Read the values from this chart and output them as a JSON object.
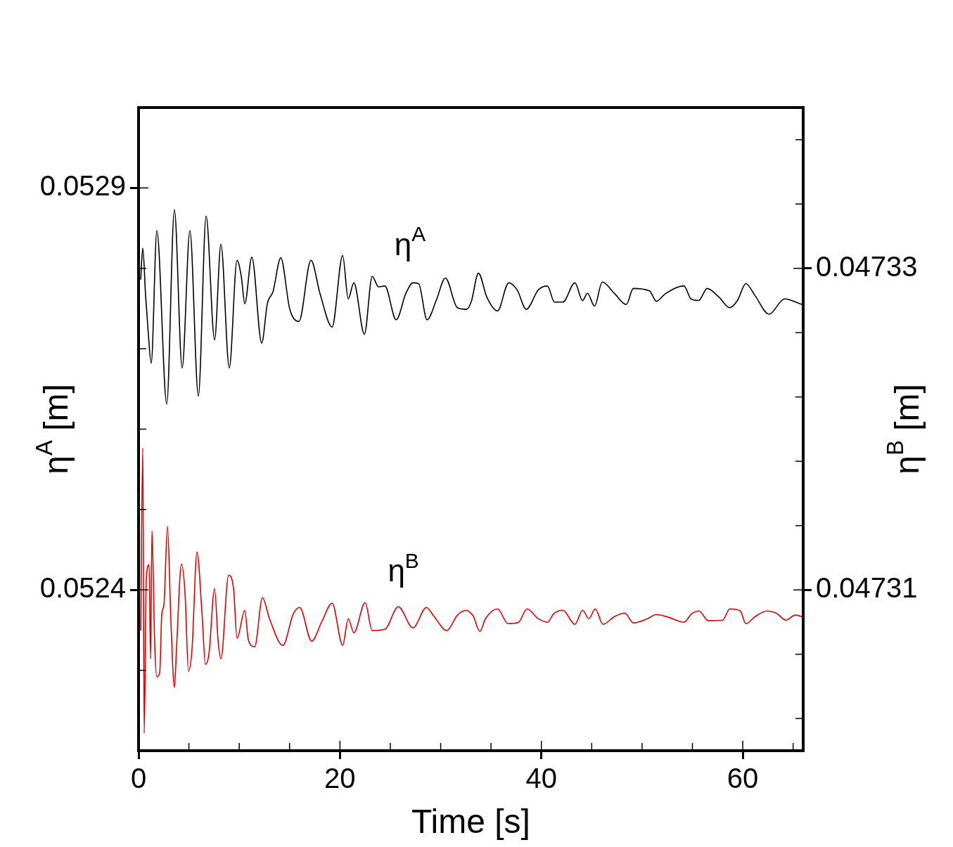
{
  "chart_data": {
    "type": "line",
    "xlabel": "Time [s]",
    "ylabel": "η$^{A}$ [m]",
    "y2label": "η$^{B}$ [m]",
    "marker": "none",
    "legend": false,
    "xlim": [
      0,
      66
    ],
    "xticks": [
      0,
      {
        "value": 5,
        "label": null
      },
      {
        "value": 10,
        "label": null
      },
      {
        "value": 15,
        "label": null
      },
      20,
      {
        "value": 25,
        "label": null
      },
      {
        "value": 30,
        "label": null
      },
      {
        "value": 35,
        "label": null
      },
      40,
      {
        "value": 45,
        "label": null
      },
      {
        "value": 50,
        "label": null
      },
      {
        "value": 55,
        "label": null
      },
      60,
      {
        "value": 65,
        "label": null
      }
    ],
    "ylim": [
      0.0522,
      0.053
    ],
    "yticks": [
      {
        "value": 0.0523,
        "label": null
      },
      0.0524,
      {
        "value": 0.0525,
        "label": null
      },
      {
        "value": 0.0526,
        "label": null
      },
      {
        "value": 0.0527,
        "label": null
      },
      {
        "value": 0.0528,
        "label": null
      },
      0.0529
    ],
    "y2lim": [
      0.0473,
      0.04734
    ],
    "y2ticks": [
      {
        "value": 0.047302,
        "label": null
      },
      {
        "value": 0.047306,
        "label": null
      },
      0.04731,
      {
        "value": 0.047314,
        "label": null
      },
      {
        "value": 0.047318,
        "label": null
      },
      {
        "value": 0.047322,
        "label": null
      },
      {
        "value": 0.047326,
        "label": null
      },
      0.04733,
      {
        "value": 0.047334,
        "label": null
      },
      {
        "value": 0.047338,
        "label": null
      }
    ],
    "series": [
      {
        "name": "η$^{A}$",
        "color": "#000000",
        "x": [
          0.21,
          0.42,
          0.7,
          0.91,
          1.26,
          1.82,
          2.8,
          3.56,
          4.33,
          5.1,
          5.94,
          6.71,
          7.55,
          8.18,
          9.01,
          9.78,
          10.2,
          10.55,
          11.25,
          12.23,
          12.79,
          13.35,
          14.12,
          15.02,
          15.93,
          17.12,
          18.03,
          19.22,
          20.27,
          20.82,
          21.38,
          22.43,
          23.2,
          23.83,
          24.46,
          25.58,
          26.55,
          27.25,
          27.81,
          28.65,
          29.56,
          30.47,
          31.66,
          32.56,
          33.05,
          33.75,
          34.59,
          35.64,
          36.76,
          37.6,
          38.5,
          39.69,
          40.6,
          41.3,
          42.14,
          43.33,
          44.09,
          44.58,
          45.28,
          46.05,
          47.24,
          48.43,
          49.13,
          50.73,
          51.43,
          52.27,
          54.16,
          54.86,
          55.63,
          56.46,
          57.65,
          58.7,
          59.47,
          60.31,
          61.22,
          62.61,
          64.15,
          65.9
        ],
        "values": [
          0.052786,
          0.052825,
          0.052766,
          0.052729,
          0.052682,
          0.052847,
          0.052631,
          0.052873,
          0.052676,
          0.052847,
          0.052641,
          0.052865,
          0.052711,
          0.05283,
          0.052676,
          0.05281,
          0.05279,
          0.052756,
          0.052814,
          0.052707,
          0.052756,
          0.052771,
          0.052813,
          0.052749,
          0.052734,
          0.05281,
          0.052768,
          0.052727,
          0.052816,
          0.052762,
          0.052782,
          0.052718,
          0.05279,
          0.052777,
          0.052778,
          0.052736,
          0.052769,
          0.052782,
          0.052781,
          0.052736,
          0.05276,
          0.052788,
          0.052751,
          0.052749,
          0.052759,
          0.052794,
          0.052764,
          0.052747,
          0.052782,
          0.052773,
          0.052749,
          0.052773,
          0.052778,
          0.052758,
          0.052758,
          0.052782,
          0.05276,
          0.052769,
          0.052753,
          0.052783,
          0.052769,
          0.052755,
          0.052775,
          0.052772,
          0.052759,
          0.052768,
          0.052778,
          0.052762,
          0.05276,
          0.052775,
          0.052764,
          0.052751,
          0.05276,
          0.052781,
          0.052766,
          0.052743,
          0.052762,
          0.052755
        ]
      },
      {
        "name": "η$^{B}$",
        "color": "#e00000",
        "axis": "y2",
        "x": [
          0.21,
          0.42,
          0.56,
          0.77,
          1.05,
          1.19,
          1.33,
          1.61,
          1.82,
          2.1,
          2.31,
          2.52,
          2.87,
          3.21,
          3.56,
          3.77,
          4.26,
          4.61,
          4.96,
          5.31,
          5.8,
          6.29,
          6.64,
          6.99,
          7.55,
          7.9,
          8.18,
          8.94,
          9.43,
          9.78,
          10.55,
          10.9,
          11.53,
          12.3,
          13.0,
          14.33,
          15.37,
          16.0,
          17.19,
          18.17,
          19.22,
          20.27,
          20.82,
          21.38,
          22.5,
          23.2,
          24.46,
          25.79,
          27.25,
          28.58,
          29.35,
          30.61,
          31.66,
          32.56,
          33.05,
          33.26,
          33.89,
          34.45,
          35.64,
          36.69,
          37.74,
          38.57,
          39.69,
          40.6,
          41.23,
          42.14,
          43.33,
          44.09,
          44.72,
          45.35,
          46.12,
          47.24,
          48.29,
          49.13,
          50.52,
          51.43,
          52.62,
          54.16,
          54.93,
          55.63,
          56.6,
          58.0,
          58.7,
          59.75,
          60.31,
          61.22,
          62.4,
          63.31,
          64.29,
          65.2,
          65.9
        ],
        "values": [
          0.04730747,
          0.04731882,
          0.04730109,
          0.0473107,
          0.04731157,
          0.04730572,
          0.04731367,
          0.04730646,
          0.04730459,
          0.04730485,
          0.04730852,
          0.04730908,
          0.04731397,
          0.04730808,
          0.04730393,
          0.04730638,
          0.04731162,
          0.04730983,
          0.04730493,
          0.04730633,
          0.04731236,
          0.04730865,
          0.04730537,
          0.04730603,
          0.04731009,
          0.04730681,
          0.04730572,
          0.04731092,
          0.04731009,
          0.04730699,
          0.04730873,
          0.0473069,
          0.04730646,
          0.04730952,
          0.04730821,
          0.04730655,
          0.04730852,
          0.04730891,
          0.04730681,
          0.04730799,
          0.04730917,
          0.04730655,
          0.04730821,
          0.04730734,
          0.04730921,
          0.04730747,
          0.04730755,
          0.04730895,
          0.04730764,
          0.04730891,
          0.04730834,
          0.04730747,
          0.04730843,
          0.04730873,
          0.04730852,
          0.04730834,
          0.04730742,
          0.04730821,
          0.04730882,
          0.0473079,
          0.04730799,
          0.04730882,
          0.04730821,
          0.04730799,
          0.04730852,
          0.04730873,
          0.04730786,
          0.04730873,
          0.04730821,
          0.04730882,
          0.04730786,
          0.04730834,
          0.04730856,
          0.04730795,
          0.04730821,
          0.04730847,
          0.0473083,
          0.04730799,
          0.04730852,
          0.04730869,
          0.04730808,
          0.04730812,
          0.04730882,
          0.04730869,
          0.0473079,
          0.04730834,
          0.04730869,
          0.04730856,
          0.04730812,
          0.04730843,
          0.04730834
        ]
      }
    ]
  }
}
